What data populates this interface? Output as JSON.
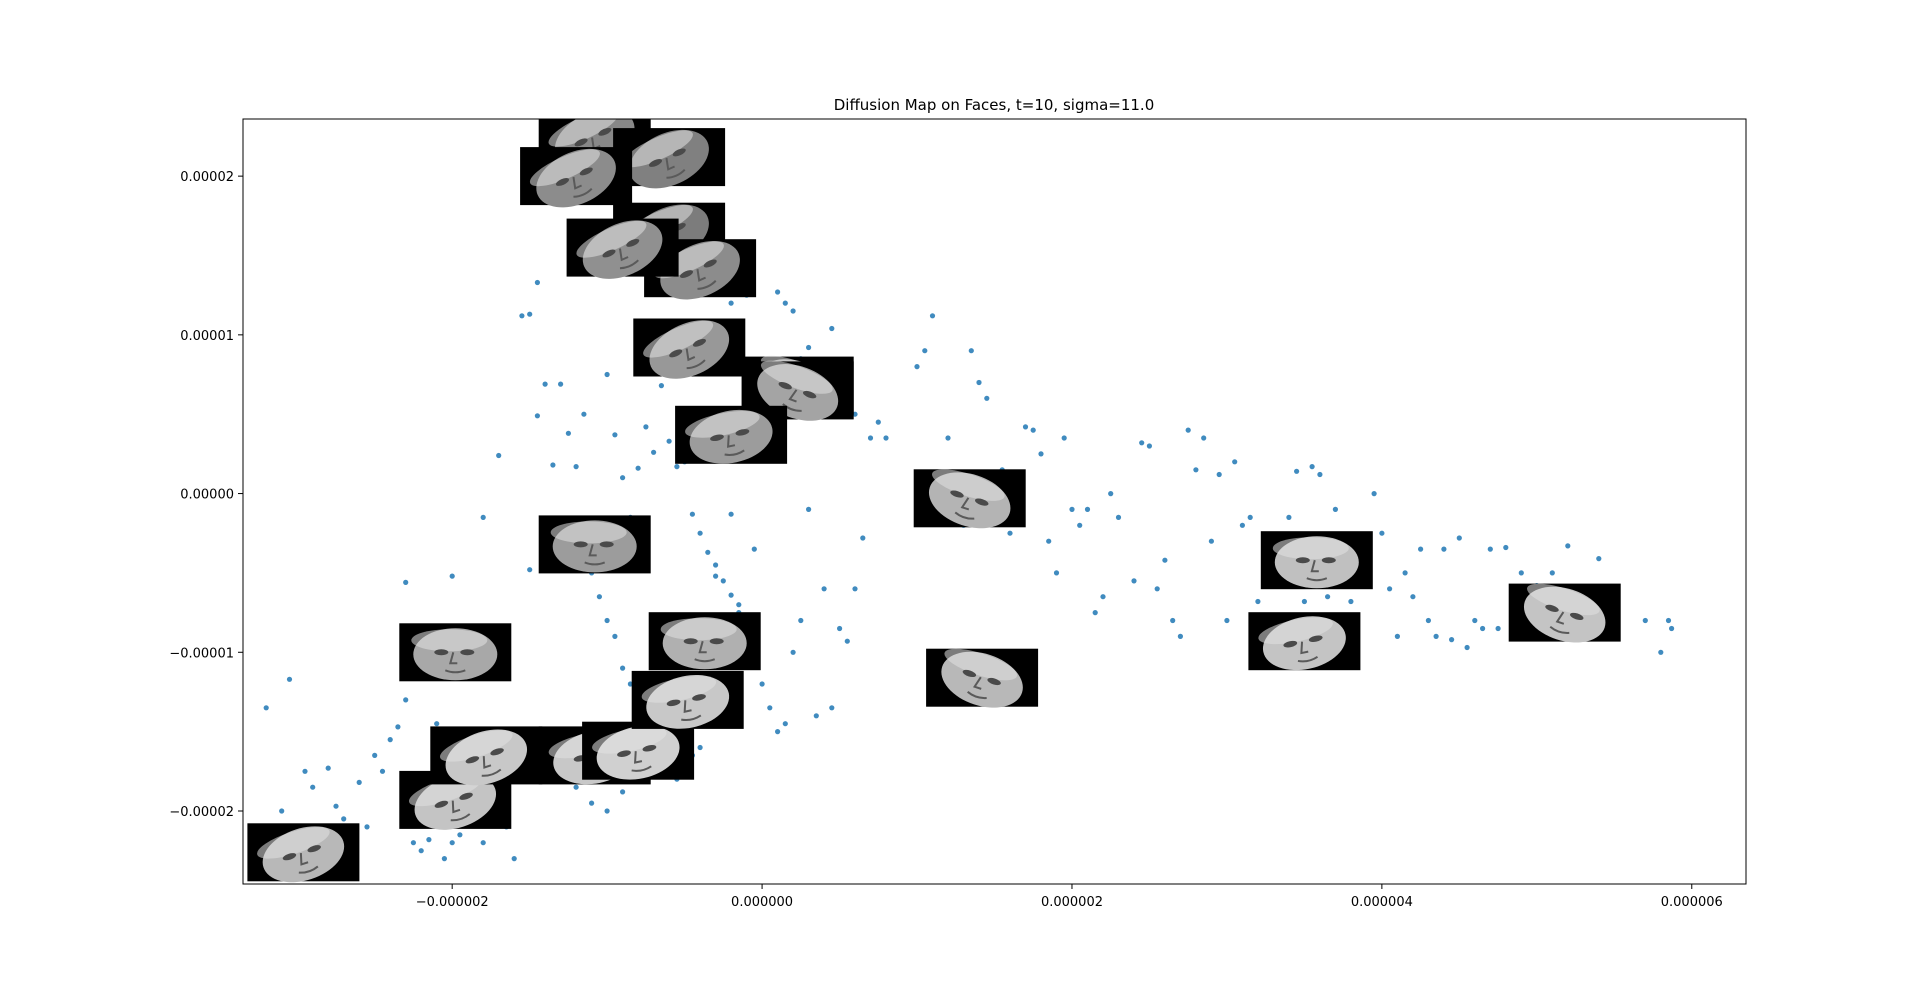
{
  "chart_data": {
    "type": "scatter",
    "title": "Diffusion Map on Faces, t=10, sigma=11.0",
    "xlabel": "",
    "ylabel": "",
    "xlim": [
      -3.35e-06,
      6.35e-06
    ],
    "ylim": [
      -2.46e-05,
      2.36e-05
    ],
    "grid": false,
    "legend": "none",
    "x_ticks": [
      {
        "value": -2e-06,
        "label": "−0.000002"
      },
      {
        "value": 0.0,
        "label": "0.000000"
      },
      {
        "value": 2e-06,
        "label": "0.000002"
      },
      {
        "value": 4e-06,
        "label": "0.000004"
      },
      {
        "value": 6e-06,
        "label": "0.000006"
      }
    ],
    "y_ticks": [
      {
        "value": 2e-05,
        "label": "0.00002"
      },
      {
        "value": 1e-05,
        "label": "0.00001"
      },
      {
        "value": 0.0,
        "label": "0.00000"
      },
      {
        "value": -1e-05,
        "label": "−0.00001"
      },
      {
        "value": -2e-05,
        "label": "−0.00002"
      }
    ],
    "marker_color": "#1f77b4",
    "series": [
      {
        "points": [
          [
            -3.2e-06,
            -1.35e-05
          ],
          [
            -3.05e-06,
            -1.17e-05
          ],
          [
            -3.1e-06,
            -2e-05
          ],
          [
            -2.95e-06,
            -1.75e-05
          ],
          [
            -2.9e-06,
            -1.85e-05
          ],
          [
            -2.8e-06,
            -1.73e-05
          ],
          [
            -2.75e-06,
            -1.97e-05
          ],
          [
            -2.7e-06,
            -2.05e-05
          ],
          [
            -2.6e-06,
            -1.82e-05
          ],
          [
            -2.55e-06,
            -2.1e-05
          ],
          [
            -2.5e-06,
            -1.65e-05
          ],
          [
            -2.45e-06,
            -1.75e-05
          ],
          [
            -2.4e-06,
            -1.55e-05
          ],
          [
            -2.35e-06,
            -1.47e-05
          ],
          [
            -2.3e-06,
            -1.3e-05
          ],
          [
            -2.25e-06,
            -2.2e-05
          ],
          [
            -2.2e-06,
            -2.25e-05
          ],
          [
            -2.15e-06,
            -2.18e-05
          ],
          [
            -2.1e-06,
            -1.45e-05
          ],
          [
            -2.05e-06,
            -2.3e-05
          ],
          [
            -2e-06,
            -2.2e-05
          ],
          [
            -1.95e-06,
            -2.15e-05
          ],
          [
            -1.9e-06,
            -1.95e-05
          ],
          [
            -1.85e-06,
            -2e-05
          ],
          [
            -1.8e-06,
            -2.2e-05
          ],
          [
            -1.75e-06,
            -2.05e-05
          ],
          [
            -1.7e-06,
            -1.6e-05
          ],
          [
            -1.65e-06,
            -2.1e-05
          ],
          [
            -1.6e-06,
            -2.3e-05
          ],
          [
            -1.55e-06,
            -1.8e-05
          ],
          [
            -2.3e-06,
            -5.6e-06
          ],
          [
            -2e-06,
            -5.2e-06
          ],
          [
            -1.8e-06,
            -1.5e-06
          ],
          [
            -1.7e-06,
            2.4e-06
          ],
          [
            -1.5e-06,
            -4.8e-06
          ],
          [
            -1.55e-06,
            1.12e-05
          ],
          [
            -1.5e-06,
            1.13e-05
          ],
          [
            -1.45e-06,
            1.33e-05
          ],
          [
            -1.4e-06,
            6.9e-06
          ],
          [
            -1.3e-06,
            6.9e-06
          ],
          [
            -1.45e-06,
            4.9e-06
          ],
          [
            -1.35e-06,
            1.8e-06
          ],
          [
            -1.25e-06,
            3.8e-06
          ],
          [
            -1.2e-06,
            1.7e-06
          ],
          [
            -1.15e-06,
            5e-06
          ],
          [
            -1.1e-06,
            -5e-06
          ],
          [
            -1.05e-06,
            -6.5e-06
          ],
          [
            -1e-06,
            -8e-06
          ],
          [
            -9.5e-07,
            -9e-06
          ],
          [
            -9e-07,
            -1.1e-05
          ],
          [
            -8.5e-07,
            -1.2e-05
          ],
          [
            -8e-07,
            -1.3e-05
          ],
          [
            -7.5e-07,
            -1.45e-05
          ],
          [
            -7e-07,
            -1.55e-05
          ],
          [
            -6.5e-07,
            -1.6e-05
          ],
          [
            -6e-07,
            -1.7e-05
          ],
          [
            -5.5e-07,
            -1.8e-05
          ],
          [
            -5e-07,
            -1.75e-05
          ],
          [
            -4.5e-07,
            -1.65e-05
          ],
          [
            -4e-07,
            -1.6e-05
          ],
          [
            -1.2e-06,
            -1.85e-05
          ],
          [
            -1.1e-06,
            -1.95e-05
          ],
          [
            -1e-06,
            -2e-05
          ],
          [
            -9e-07,
            -1.88e-05
          ],
          [
            -8e-07,
            -1.75e-05
          ],
          [
            -1e-06,
            7.5e-06
          ],
          [
            -9.5e-07,
            3.7e-06
          ],
          [
            -9e-07,
            1e-06
          ],
          [
            -8.5e-07,
            -1.5e-06
          ],
          [
            -8e-07,
            1.6e-06
          ],
          [
            -7.5e-07,
            4.2e-06
          ],
          [
            -7e-07,
            2.6e-06
          ],
          [
            -6.5e-07,
            6.8e-06
          ],
          [
            -6e-07,
            3.3e-06
          ],
          [
            -5.5e-07,
            1.7e-06
          ],
          [
            -5e-07,
            2e-06
          ],
          [
            -4.5e-07,
            -1.3e-06
          ],
          [
            -4e-07,
            -2.5e-06
          ],
          [
            -3.5e-07,
            -3.7e-06
          ],
          [
            -3e-07,
            -5.2e-06
          ],
          [
            -2.5e-07,
            -5.5e-06
          ],
          [
            -2e-07,
            -6.4e-06
          ],
          [
            -1.5e-07,
            -7.5e-06
          ],
          [
            -1e-07,
            -8.8e-06
          ],
          [
            -5e-08,
            -3.5e-06
          ],
          [
            0.0,
            -1.2e-05
          ],
          [
            5e-08,
            -1.35e-05
          ],
          [
            1e-07,
            -1.5e-05
          ],
          [
            1.5e-07,
            -1.45e-05
          ],
          [
            2e-07,
            -1e-05
          ],
          [
            2.5e-07,
            -8e-06
          ],
          [
            3e-07,
            -1e-06
          ],
          [
            3.5e-07,
            -1.4e-05
          ],
          [
            4e-07,
            -6e-06
          ],
          [
            4.5e-07,
            -1.35e-05
          ],
          [
            5e-07,
            -8.5e-06
          ],
          [
            5.5e-07,
            -9.3e-06
          ],
          [
            6e-07,
            -6e-06
          ],
          [
            6.5e-07,
            -2.8e-06
          ],
          [
            7e-07,
            3.5e-06
          ],
          [
            -4e-07,
            1.05e-05
          ],
          [
            -3e-07,
            1.3e-05
          ],
          [
            -2e-07,
            1.2e-05
          ],
          [
            -1e-07,
            1.25e-05
          ],
          [
            1e-07,
            1.27e-05
          ],
          [
            1.5e-07,
            1.2e-05
          ],
          [
            2e-07,
            1.15e-05
          ],
          [
            2.5e-07,
            8.5e-06
          ],
          [
            3e-07,
            9.2e-06
          ],
          [
            3.5e-07,
            7e-06
          ],
          [
            4.5e-07,
            1.04e-05
          ],
          [
            5.5e-07,
            8e-06
          ],
          [
            6e-07,
            5e-06
          ],
          [
            7.5e-07,
            4.5e-06
          ],
          [
            8e-07,
            3.5e-06
          ],
          [
            1e-06,
            8e-06
          ],
          [
            1.05e-06,
            9e-06
          ],
          [
            1.1e-06,
            1.12e-05
          ],
          [
            1.2e-06,
            3.5e-06
          ],
          [
            1.3e-06,
            -2e-06
          ],
          [
            1.35e-06,
            9e-06
          ],
          [
            1.4e-06,
            7e-06
          ],
          [
            1.45e-06,
            6e-06
          ],
          [
            1.55e-06,
            1.5e-06
          ],
          [
            1.6e-06,
            -2.5e-06
          ],
          [
            1.7e-06,
            4.2e-06
          ],
          [
            1.75e-06,
            4e-06
          ],
          [
            1.8e-06,
            2.5e-06
          ],
          [
            1.85e-06,
            -3e-06
          ],
          [
            1.9e-06,
            -5e-06
          ],
          [
            1.95e-06,
            3.5e-06
          ],
          [
            2e-06,
            -1e-06
          ],
          [
            2.05e-06,
            -2e-06
          ],
          [
            2.1e-06,
            -1e-06
          ],
          [
            2.15e-06,
            -7.5e-06
          ],
          [
            2.2e-06,
            -6.5e-06
          ],
          [
            2.25e-06,
            0.0
          ],
          [
            2.3e-06,
            -1.5e-06
          ],
          [
            2.4e-06,
            -5.5e-06
          ],
          [
            2.45e-06,
            3.2e-06
          ],
          [
            2.5e-06,
            3e-06
          ],
          [
            2.55e-06,
            -6e-06
          ],
          [
            2.6e-06,
            -4.2e-06
          ],
          [
            2.65e-06,
            -8e-06
          ],
          [
            2.7e-06,
            -9e-06
          ],
          [
            2.75e-06,
            4e-06
          ],
          [
            2.8e-06,
            1.5e-06
          ],
          [
            2.85e-06,
            3.5e-06
          ],
          [
            2.9e-06,
            -3e-06
          ],
          [
            2.95e-06,
            1.2e-06
          ],
          [
            3e-06,
            -8e-06
          ],
          [
            3.05e-06,
            2e-06
          ],
          [
            3.1e-06,
            -2e-06
          ],
          [
            3.15e-06,
            -1.5e-06
          ],
          [
            3.2e-06,
            -6.8e-06
          ],
          [
            3.25e-06,
            -3.5e-06
          ],
          [
            3.3e-06,
            -8.5e-06
          ],
          [
            3.4e-06,
            -1.5e-06
          ],
          [
            3.45e-06,
            1.4e-06
          ],
          [
            3.5e-06,
            -6.8e-06
          ],
          [
            3.55e-06,
            1.7e-06
          ],
          [
            3.6e-06,
            1.2e-06
          ],
          [
            3.65e-06,
            -6.5e-06
          ],
          [
            3.7e-06,
            -1e-06
          ],
          [
            3.75e-06,
            -3.8e-06
          ],
          [
            3.8e-06,
            -6.8e-06
          ],
          [
            3.85e-06,
            -4.5e-06
          ],
          [
            3.9e-06,
            -5e-06
          ],
          [
            3.95e-06,
            0.0
          ],
          [
            4e-06,
            -2.5e-06
          ],
          [
            4.05e-06,
            -6e-06
          ],
          [
            4.1e-06,
            -9e-06
          ],
          [
            4.15e-06,
            -5e-06
          ],
          [
            4.2e-06,
            -6.5e-06
          ],
          [
            4.25e-06,
            -3.5e-06
          ],
          [
            4.3e-06,
            -8e-06
          ],
          [
            4.35e-06,
            -9e-06
          ],
          [
            4.4e-06,
            -3.5e-06
          ],
          [
            4.45e-06,
            -9.2e-06
          ],
          [
            4.5e-06,
            -2.8e-06
          ],
          [
            4.55e-06,
            -9.7e-06
          ],
          [
            4.6e-06,
            -8e-06
          ],
          [
            4.65e-06,
            -8.5e-06
          ],
          [
            4.7e-06,
            -3.5e-06
          ],
          [
            4.75e-06,
            -8.5e-06
          ],
          [
            4.8e-06,
            -3.4e-06
          ],
          [
            4.85e-06,
            -6.5e-06
          ],
          [
            4.9e-06,
            -5e-06
          ],
          [
            5e-06,
            -5.8e-06
          ],
          [
            5.1e-06,
            -5e-06
          ],
          [
            5.2e-06,
            -3.3e-06
          ],
          [
            5.3e-06,
            -7.5e-06
          ],
          [
            5.4e-06,
            -4.1e-06
          ],
          [
            5.7e-06,
            -8e-06
          ],
          [
            5.8e-06,
            -1e-05
          ],
          [
            5.85e-06,
            -8e-06
          ],
          [
            5.87e-06,
            -8.5e-06
          ],
          [
            -1.5e-07,
            -7e-06
          ],
          [
            -2e-07,
            -1.3e-06
          ],
          [
            -3e-07,
            -4.5e-06
          ]
        ]
      }
    ],
    "face_thumbnails": [
      {
        "x": -2.96e-06,
        "y": -2.26e-05,
        "shade": "#b8b8b8",
        "pose": "down-left"
      },
      {
        "x": -1.98e-06,
        "y": -1.93e-05,
        "shade": "#c4c4c4",
        "pose": "down-left"
      },
      {
        "x": -1.98e-06,
        "y": -1e-05,
        "shade": "#a8a8a8",
        "pose": "frontal"
      },
      {
        "x": -1.78e-06,
        "y": -1.65e-05,
        "shade": "#c8c8c8",
        "pose": "down-left"
      },
      {
        "x": -1.08e-06,
        "y": -1.65e-05,
        "shade": "#c8c8c8",
        "pose": "left"
      },
      {
        "x": -8e-07,
        "y": -1.62e-05,
        "shade": "#d0d0d0",
        "pose": "left"
      },
      {
        "x": -1.08e-06,
        "y": -3.2e-06,
        "shade": "#9c9c9c",
        "pose": "frontal"
      },
      {
        "x": -3.7e-07,
        "y": -9.3e-06,
        "shade": "#b0b0b0",
        "pose": "frontal"
      },
      {
        "x": -4.8e-07,
        "y": -1.3e-05,
        "shade": "#c8c8c8",
        "pose": "left"
      },
      {
        "x": -1.08e-06,
        "y": 2.25e-05,
        "shade": "#888888",
        "pose": "up-left"
      },
      {
        "x": -6e-07,
        "y": 2.12e-05,
        "shade": "#808080",
        "pose": "up-left"
      },
      {
        "x": -1.2e-06,
        "y": 2e-05,
        "shade": "#8c8c8c",
        "pose": "up-left"
      },
      {
        "x": -6e-07,
        "y": 1.65e-05,
        "shade": "#7c7c7c",
        "pose": "up-left"
      },
      {
        "x": -4e-07,
        "y": 1.42e-05,
        "shade": "#8c8c8c",
        "pose": "up-left"
      },
      {
        "x": -9e-07,
        "y": 1.55e-05,
        "shade": "#909090",
        "pose": "up-left"
      },
      {
        "x": -4.7e-07,
        "y": 9.2e-06,
        "shade": "#989898",
        "pose": "up-left"
      },
      {
        "x": 2.3e-07,
        "y": 6.8e-06,
        "shade": "#a4a4a4",
        "pose": "up-right"
      },
      {
        "x": 2.3e-07,
        "y": 6.5e-06,
        "shade": "#a4a4a4",
        "pose": "up-right"
      },
      {
        "x": -2e-07,
        "y": 3.7e-06,
        "shade": "#9c9c9c",
        "pose": "left"
      },
      {
        "x": 1.34e-06,
        "y": -3e-07,
        "shade": "#b4b4b4",
        "pose": "down-right"
      },
      {
        "x": 1.42e-06,
        "y": -1.16e-05,
        "shade": "#b8b8b8",
        "pose": "down-right"
      },
      {
        "x": 3.58e-06,
        "y": -4.2e-06,
        "shade": "#c0c0c0",
        "pose": "frontal"
      },
      {
        "x": 3.5e-06,
        "y": -9.3e-06,
        "shade": "#c4c4c4",
        "pose": "left"
      },
      {
        "x": 5.18e-06,
        "y": -7.5e-06,
        "shade": "#c4c4c4",
        "pose": "down-right"
      }
    ]
  }
}
